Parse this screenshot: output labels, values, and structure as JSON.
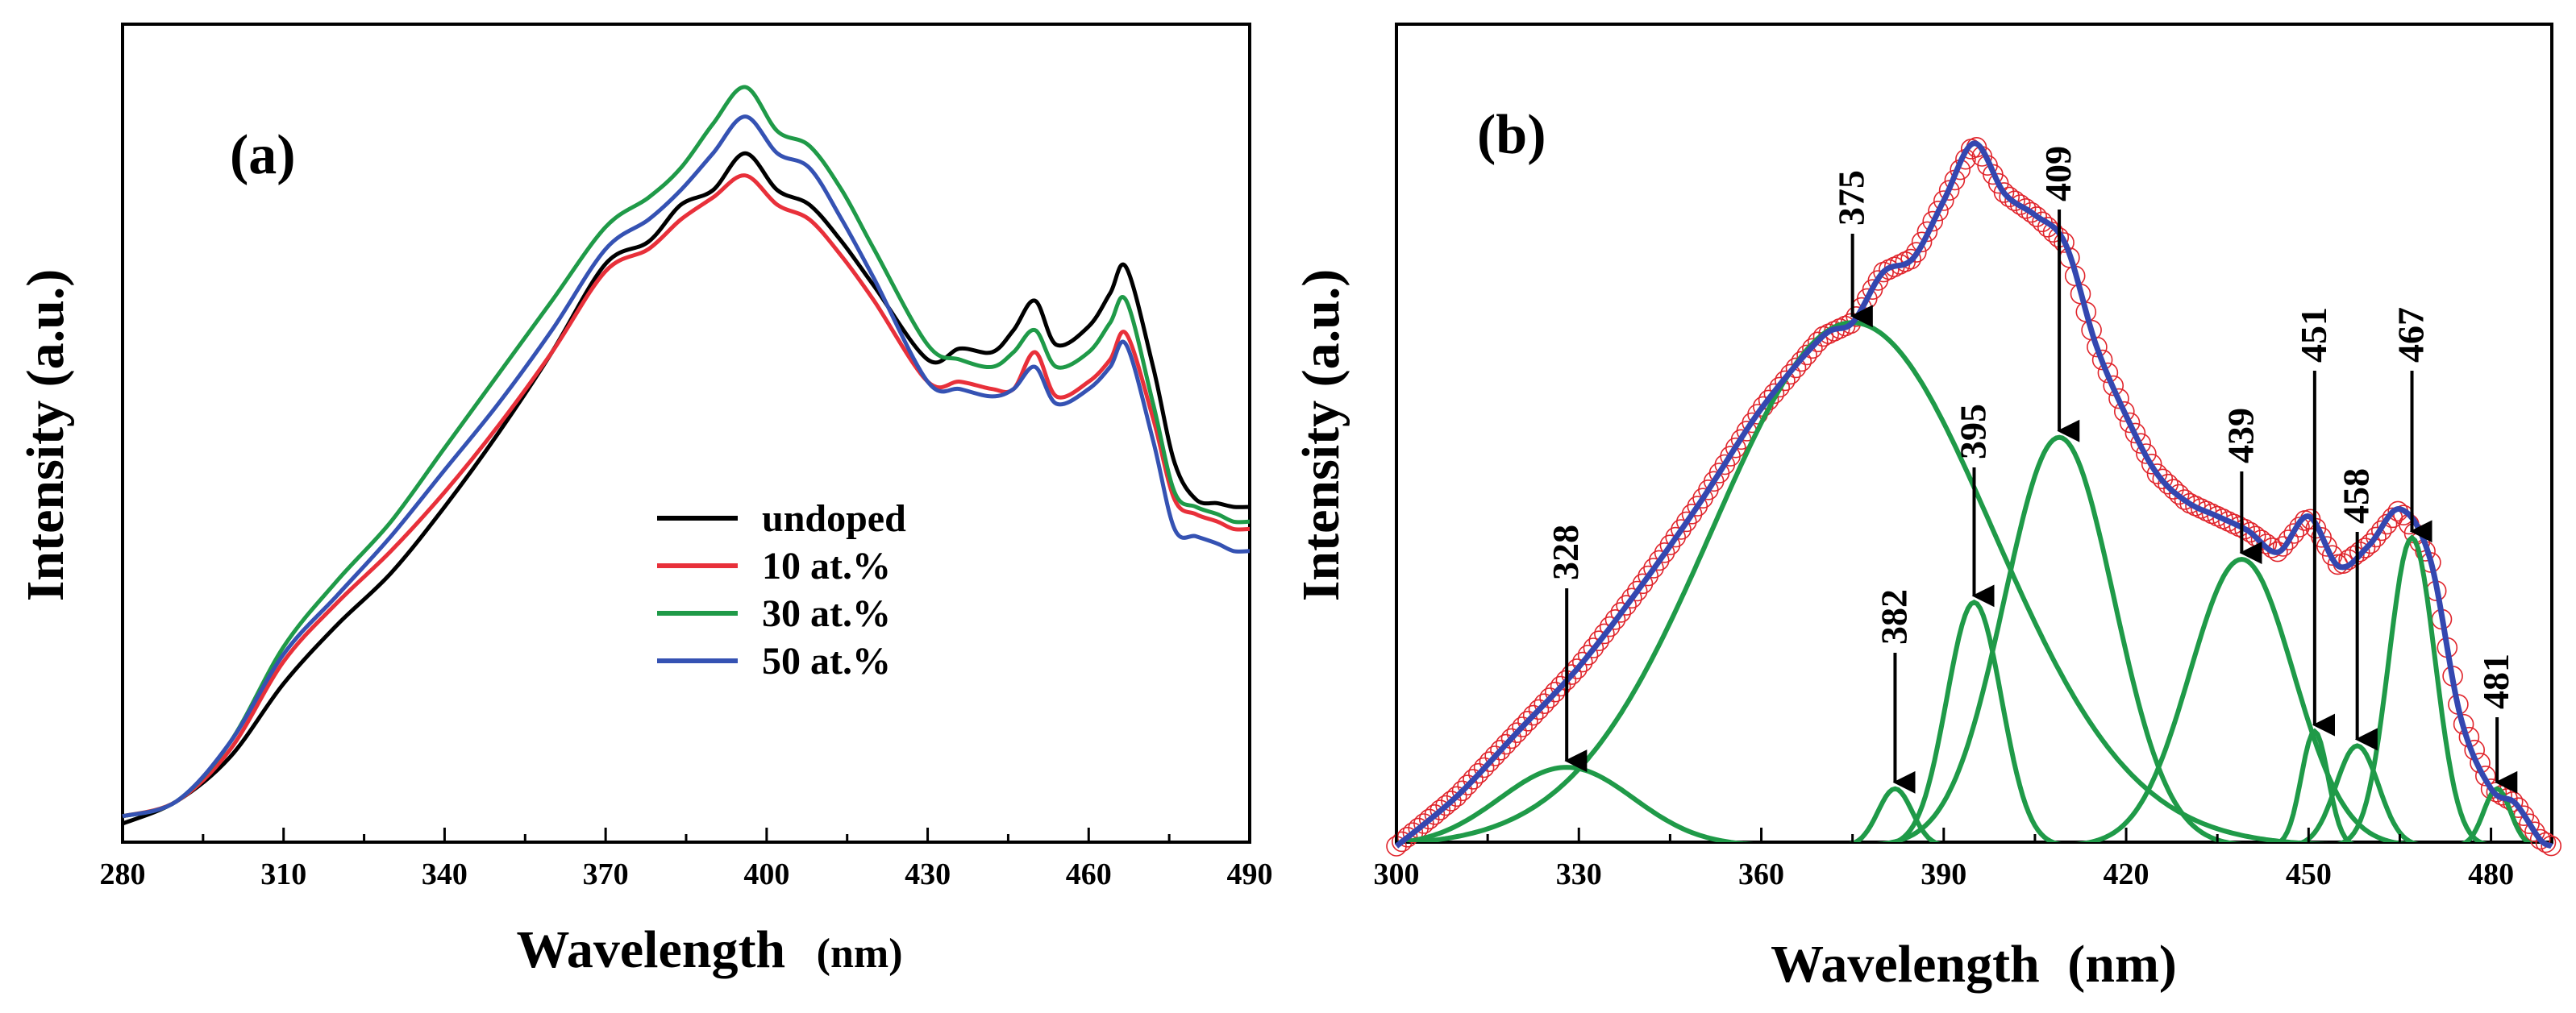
{
  "chart_data": [
    {
      "id": "a",
      "type": "line",
      "panel_label": "(a)",
      "xlabel_main": "Wavelength",
      "xlabel_unit": "(nm)",
      "ylabel": "Intensity (a.u.)",
      "xlim": [
        280,
        490
      ],
      "ylim": [
        0,
        1
      ],
      "xticks": [
        280,
        310,
        340,
        370,
        400,
        430,
        460,
        490
      ],
      "yticks_shown": false,
      "legend_position": "center-right",
      "series": [
        {
          "name": "undoped",
          "color": "#000000",
          "x": [
            280,
            290,
            300,
            310,
            320,
            330,
            340,
            350,
            360,
            370,
            378,
            384,
            390,
            396,
            402,
            408,
            414,
            420,
            430,
            436,
            442,
            446,
            450,
            454,
            460,
            464,
            467,
            472,
            476,
            480,
            484,
            487,
            490
          ],
          "y": [
            0.0,
            0.03,
            0.09,
            0.19,
            0.27,
            0.34,
            0.43,
            0.53,
            0.64,
            0.76,
            0.79,
            0.84,
            0.86,
            0.91,
            0.86,
            0.84,
            0.79,
            0.73,
            0.63,
            0.645,
            0.64,
            0.67,
            0.71,
            0.65,
            0.675,
            0.72,
            0.755,
            0.62,
            0.49,
            0.44,
            0.435,
            0.43,
            0.43
          ]
        },
        {
          "name": "10 at.%",
          "color": "#e8303a",
          "x": [
            280,
            290,
            300,
            310,
            320,
            330,
            340,
            350,
            360,
            370,
            378,
            384,
            390,
            396,
            402,
            408,
            414,
            420,
            430,
            436,
            442,
            446,
            450,
            454,
            460,
            464,
            467,
            472,
            476,
            480,
            484,
            487,
            490
          ],
          "y": [
            0.01,
            0.03,
            0.1,
            0.22,
            0.3,
            0.37,
            0.45,
            0.54,
            0.64,
            0.75,
            0.78,
            0.82,
            0.85,
            0.88,
            0.84,
            0.82,
            0.77,
            0.71,
            0.6,
            0.6,
            0.59,
            0.59,
            0.64,
            0.58,
            0.6,
            0.63,
            0.665,
            0.55,
            0.44,
            0.42,
            0.41,
            0.4,
            0.4
          ]
        },
        {
          "name": "30 at.%",
          "color": "#1f9a48",
          "x": [
            280,
            290,
            300,
            310,
            320,
            330,
            340,
            350,
            360,
            370,
            378,
            384,
            390,
            396,
            402,
            408,
            414,
            420,
            430,
            436,
            442,
            446,
            450,
            454,
            460,
            464,
            467,
            472,
            476,
            480,
            484,
            487,
            490
          ],
          "y": [
            0.01,
            0.03,
            0.11,
            0.24,
            0.33,
            0.41,
            0.51,
            0.61,
            0.71,
            0.81,
            0.85,
            0.89,
            0.95,
            1.0,
            0.94,
            0.92,
            0.86,
            0.78,
            0.65,
            0.63,
            0.62,
            0.64,
            0.67,
            0.62,
            0.64,
            0.68,
            0.71,
            0.57,
            0.45,
            0.43,
            0.42,
            0.41,
            0.41
          ]
        },
        {
          "name": "50 at.%",
          "color": "#3552b3",
          "x": [
            280,
            290,
            300,
            310,
            320,
            330,
            340,
            350,
            360,
            370,
            378,
            384,
            390,
            396,
            402,
            408,
            414,
            420,
            430,
            436,
            442,
            446,
            450,
            454,
            460,
            464,
            467,
            472,
            476,
            480,
            484,
            487,
            490
          ],
          "y": [
            0.01,
            0.03,
            0.11,
            0.23,
            0.31,
            0.39,
            0.48,
            0.57,
            0.67,
            0.78,
            0.82,
            0.86,
            0.91,
            0.96,
            0.91,
            0.89,
            0.82,
            0.74,
            0.6,
            0.59,
            0.58,
            0.59,
            0.62,
            0.57,
            0.59,
            0.62,
            0.65,
            0.52,
            0.4,
            0.39,
            0.38,
            0.37,
            0.37
          ]
        }
      ]
    },
    {
      "id": "b",
      "type": "line",
      "panel_label": "(b)",
      "xlabel_main": "Wavelength",
      "xlabel_unit": "(nm)",
      "ylabel": "Intensity (a.u.)",
      "xlim": [
        300,
        490
      ],
      "ylim": [
        0,
        1
      ],
      "xticks": [
        300,
        330,
        360,
        390,
        420,
        450,
        480
      ],
      "yticks_shown": false,
      "measured": {
        "name": "measured spectrum",
        "marker": "open circle",
        "color": "#e0242b",
        "x": [
          300,
          310,
          320,
          330,
          340,
          350,
          360,
          370,
          375,
          380,
          385,
          390,
          395,
          400,
          405,
          410,
          415,
          420,
          425,
          430,
          435,
          440,
          445,
          450,
          455,
          460,
          465,
          470,
          475,
          480,
          484,
          488,
          490
        ],
        "y": [
          0.0,
          0.07,
          0.16,
          0.25,
          0.36,
          0.48,
          0.61,
          0.71,
          0.73,
          0.8,
          0.82,
          0.9,
          0.98,
          0.91,
          0.88,
          0.84,
          0.7,
          0.6,
          0.52,
          0.48,
          0.46,
          0.44,
          0.41,
          0.46,
          0.39,
          0.42,
          0.47,
          0.4,
          0.18,
          0.08,
          0.06,
          0.01,
          0.0
        ]
      },
      "fit": {
        "name": "cumulative fit",
        "color": "#3447b0",
        "x": [
          300,
          310,
          320,
          330,
          340,
          350,
          360,
          370,
          375,
          380,
          385,
          390,
          395,
          400,
          405,
          410,
          415,
          420,
          425,
          430,
          435,
          440,
          445,
          450,
          455,
          460,
          465,
          470,
          475,
          480,
          484,
          488,
          490
        ],
        "y": [
          0.0,
          0.07,
          0.16,
          0.25,
          0.36,
          0.48,
          0.61,
          0.71,
          0.73,
          0.8,
          0.82,
          0.9,
          0.98,
          0.91,
          0.88,
          0.84,
          0.7,
          0.6,
          0.52,
          0.48,
          0.46,
          0.44,
          0.41,
          0.46,
          0.39,
          0.42,
          0.47,
          0.4,
          0.18,
          0.08,
          0.06,
          0.01,
          0.0
        ]
      },
      "components": [
        {
          "center": 328,
          "amplitude": 0.11,
          "sigma": 11,
          "label": "328"
        },
        {
          "center": 375,
          "amplitude": 0.73,
          "sigma": 23,
          "label": "375"
        },
        {
          "center": 382,
          "amplitude": 0.08,
          "sigma": 2.8,
          "label": "382"
        },
        {
          "center": 395,
          "amplitude": 0.34,
          "sigma": 4.5,
          "label": "395"
        },
        {
          "center": 409,
          "amplitude": 0.57,
          "sigma": 9,
          "label": "409"
        },
        {
          "center": 439,
          "amplitude": 0.4,
          "sigma": 8.5,
          "label": "439"
        },
        {
          "center": 451,
          "amplitude": 0.16,
          "sigma": 2.2,
          "label": "451"
        },
        {
          "center": 458,
          "amplitude": 0.14,
          "sigma": 3.5,
          "label": "458"
        },
        {
          "center": 467,
          "amplitude": 0.43,
          "sigma": 3.8,
          "label": "467"
        },
        {
          "center": 481,
          "amplitude": 0.08,
          "sigma": 2.2,
          "label": "481"
        }
      ],
      "component_color": "#1f9a48"
    }
  ]
}
